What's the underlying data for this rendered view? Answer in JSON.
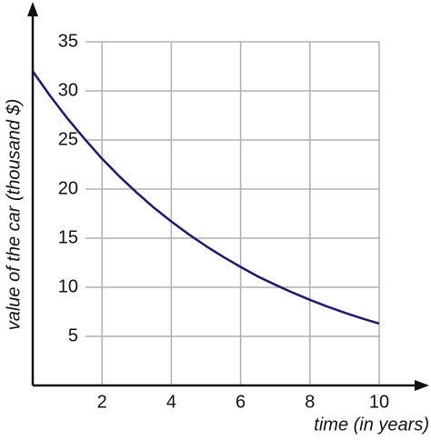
{
  "chart_data": {
    "type": "line",
    "x_label": "time (in years)",
    "y_label": "value of the car (thousand $)",
    "x": [
      0,
      0.5,
      1,
      1.5,
      2,
      2.5,
      3,
      3.5,
      4,
      4.5,
      5,
      5.5,
      6,
      6.5,
      7,
      7.5,
      8,
      8.5,
      9,
      9.5,
      10
    ],
    "values": [
      32,
      29.5,
      27.2,
      25.1,
      23.1,
      21.3,
      19.65,
      18.1,
      16.7,
      15.4,
      14.2,
      13.1,
      12.07,
      11.1,
      10.26,
      9.46,
      8.72,
      8.04,
      7.41,
      6.83,
      6.3
    ],
    "color": "#1c1a6b",
    "xlim": [
      0,
      10
    ],
    "ylim": [
      0,
      35
    ],
    "xticks": [
      2,
      4,
      6,
      8,
      10
    ],
    "yticks": [
      5,
      10,
      15,
      20,
      25,
      30,
      35
    ],
    "grid": true
  }
}
